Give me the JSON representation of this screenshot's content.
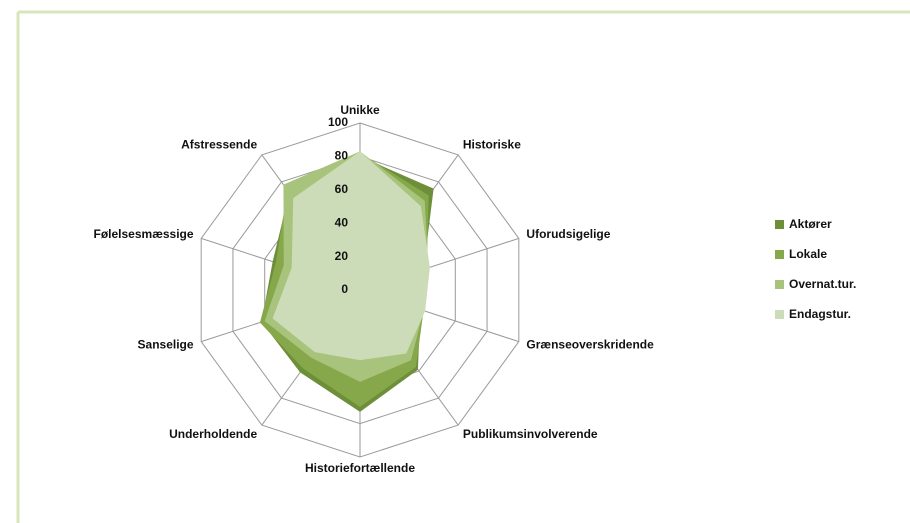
{
  "chart_data": {
    "type": "radar",
    "categories": [
      "Unikke",
      "Historiske",
      "Uforudsigelige",
      "Grænseoverskridende",
      "Publikumsinvolverende",
      "Historiefortællende",
      "Underholdende",
      "Sanselige",
      "Følelsesmæssige",
      "Afstressende"
    ],
    "series": [
      {
        "name": "Aktører",
        "color": "#6e8f3a",
        "values": [
          80,
          75,
          40,
          38,
          59,
          73,
          61,
          62,
          55,
          72
        ]
      },
      {
        "name": "Lokale",
        "color": "#86a84a",
        "values": [
          82,
          70,
          42,
          40,
          57,
          70,
          58,
          63,
          53,
          74
        ]
      },
      {
        "name": "Overnat.tur.",
        "color": "#a8c47c",
        "values": [
          83,
          66,
          43,
          40,
          52,
          55,
          50,
          60,
          48,
          78
        ]
      },
      {
        "name": "Endagstur.",
        "color": "#cddcb8",
        "values": [
          83,
          62,
          44,
          41,
          47,
          42,
          46,
          55,
          43,
          68
        ]
      }
    ],
    "ylim": [
      0,
      100
    ],
    "yticks": [
      0,
      20,
      40,
      60,
      80,
      100
    ],
    "grid": true,
    "legend": "right"
  }
}
